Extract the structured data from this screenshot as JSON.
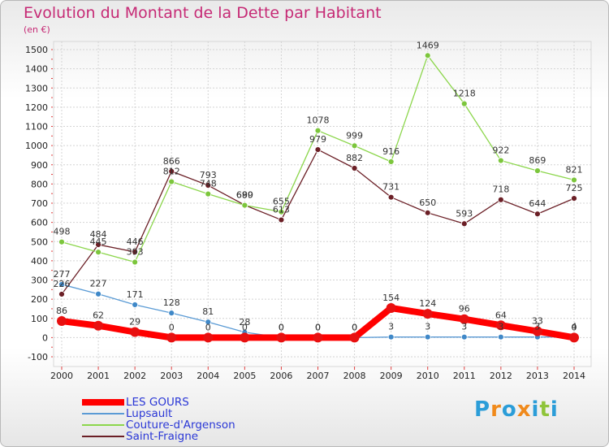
{
  "header": {
    "title": "Evolution du Montant de la Dette par Habitant",
    "subtitle": "(en €)"
  },
  "brand": {
    "letters": [
      "P",
      "r",
      "o",
      "x",
      "i",
      "t",
      "i"
    ],
    "colors": [
      "#2b9dd8",
      "#f08a1c",
      "#2b9dd8",
      "#f08a1c",
      "#2b9dd8",
      "#8fc43a",
      "#2b9dd8"
    ]
  },
  "legend": [
    {
      "label": "LES GOURS",
      "color": "#ff0000",
      "thick": true
    },
    {
      "label": "Lupsault",
      "color": "#5b9bd5",
      "thick": false
    },
    {
      "label": "Couture-d'Argenson",
      "color": "#8cd64c",
      "thick": false
    },
    {
      "label": "Saint-Fraigne",
      "color": "#6b1f26",
      "thick": false
    }
  ],
  "chart_data": {
    "type": "line",
    "title": "Evolution du Montant de la Dette par Habitant",
    "ylabel": "(en €)",
    "xlabel": "",
    "x": [
      "2000",
      "2001",
      "2002",
      "2003",
      "2004",
      "2005",
      "2006",
      "2007",
      "2008",
      "2009",
      "2010",
      "2011",
      "2012",
      "2013",
      "2014"
    ],
    "ylim": [
      -100,
      1500
    ],
    "yticks": [
      "-100",
      "0",
      "100",
      "200",
      "300",
      "400",
      "500",
      "600",
      "700",
      "800",
      "900",
      "1000",
      "1100",
      "1200",
      "1300",
      "1400",
      "1500"
    ],
    "grid": true,
    "series": [
      {
        "name": "LES GOURS",
        "color": "#ff0000",
        "markerColor": "#e81010",
        "values": [
          86,
          62,
          29,
          0,
          0,
          0,
          0,
          0,
          0,
          154,
          124,
          96,
          64,
          33,
          0
        ]
      },
      {
        "name": "Lupsault",
        "color": "#5b9bd5",
        "markerColor": "#3f88c8",
        "values": [
          277,
          227,
          171,
          128,
          81,
          28,
          0,
          0,
          0,
          3,
          3,
          3,
          3,
          3,
          4
        ]
      },
      {
        "name": "Couture-d'Argenson",
        "color": "#8cd64c",
        "markerColor": "#7cc63c",
        "values": [
          498,
          445,
          393,
          812,
          748,
          689,
          655,
          1078,
          999,
          916,
          1469,
          1218,
          922,
          869,
          821
        ]
      },
      {
        "name": "Saint-Fraigne",
        "color": "#6b1f26",
        "markerColor": "#6b1f26",
        "values": [
          226,
          484,
          446,
          866,
          793,
          690,
          613,
          979,
          882,
          731,
          650,
          593,
          718,
          644,
          725
        ]
      }
    ]
  }
}
